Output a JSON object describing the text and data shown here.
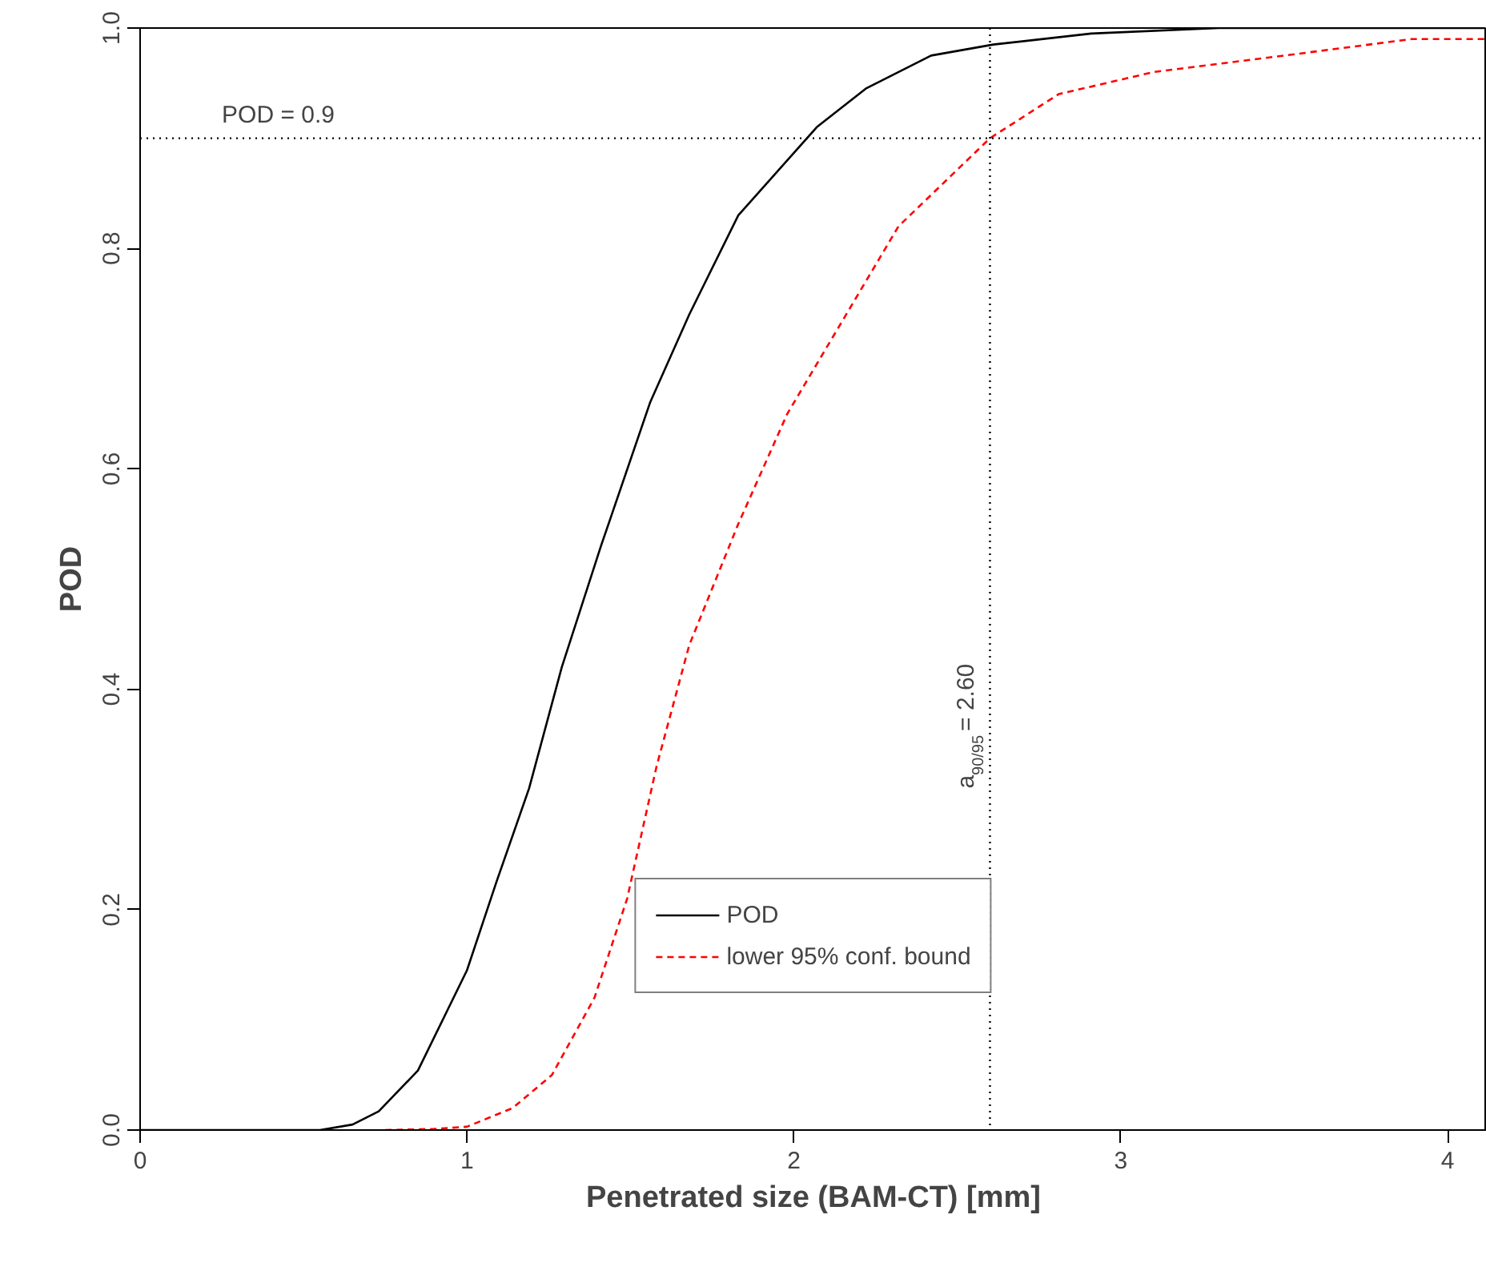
{
  "chart_data": {
    "type": "line",
    "xlabel": "Penetrated size (BAM-CT) [mm]",
    "ylabel": "POD",
    "xlim": [
      0,
      4.12
    ],
    "ylim": [
      0,
      1
    ],
    "xticks": [
      0,
      1,
      2,
      3,
      4
    ],
    "yticks": [
      {
        "value": 0,
        "label": "0.0"
      },
      0.2,
      0.4,
      0.6,
      0.8,
      {
        "value": 1,
        "label": "1.0"
      }
    ],
    "series": [
      {
        "name": "POD",
        "color": "#000000",
        "line_style": "solid",
        "x": [
          0,
          0.3,
          0.55,
          0.65,
          0.73,
          0.85,
          1.0,
          1.09,
          1.19,
          1.29,
          1.41,
          1.56,
          1.68,
          1.83,
          1.98,
          2.07,
          2.22,
          2.42,
          2.61,
          2.91,
          3.3,
          3.7,
          4.12
        ],
        "values": [
          0,
          0,
          0,
          0.005,
          0.017,
          0.054,
          0.145,
          0.225,
          0.31,
          0.42,
          0.53,
          0.66,
          0.74,
          0.83,
          0.88,
          0.91,
          0.945,
          0.975,
          0.985,
          0.995,
          1.0,
          1.0,
          1.0
        ]
      },
      {
        "name": "lower 95% conf. bound",
        "color": "#ff0000",
        "line_style": "dashed",
        "x": [
          0.75,
          0.9,
          1.0,
          1.14,
          1.26,
          1.39,
          1.49,
          1.58,
          1.68,
          1.83,
          1.98,
          2.12,
          2.32,
          2.6,
          2.81,
          3.1,
          3.5,
          3.89,
          4.12
        ],
        "values": [
          0,
          0.001,
          0.003,
          0.02,
          0.05,
          0.12,
          0.21,
          0.33,
          0.44,
          0.55,
          0.65,
          0.72,
          0.82,
          0.9,
          0.94,
          0.96,
          0.975,
          0.99,
          0.99
        ]
      }
    ],
    "ref_lines": [
      {
        "axis": "y",
        "value": 0.9,
        "label": "POD = 0.9",
        "line_style": "dotted",
        "color": "#000000"
      },
      {
        "axis": "x",
        "value": 2.6,
        "label": "a$_{90/95}$ = 2.60",
        "line_style": "dotted",
        "color": "#000000"
      }
    ],
    "legend": "bottom",
    "grid": false,
    "marker": "none"
  }
}
